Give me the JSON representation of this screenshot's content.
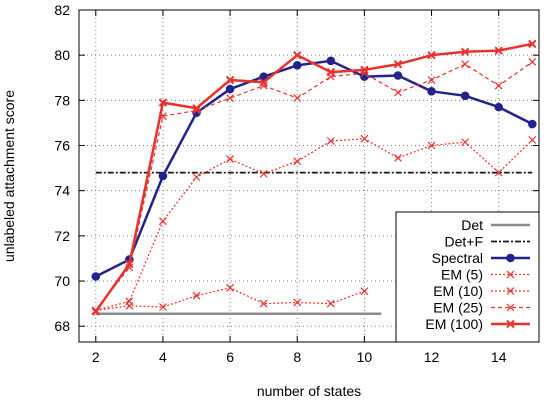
{
  "chart_data": {
    "type": "line",
    "title": "",
    "xlabel": "number of states",
    "ylabel": "unlabeled attachment score",
    "xlim": [
      1.5,
      15.2
    ],
    "ylim": [
      67.3,
      82
    ],
    "xticks": [
      2,
      4,
      6,
      8,
      10,
      12,
      14
    ],
    "yticks": [
      68,
      70,
      72,
      74,
      76,
      78,
      80,
      82
    ],
    "grid": true,
    "legend_position": "bottom-right",
    "series": [
      {
        "name": "Det",
        "style": "solid",
        "marker": "none",
        "color": "#8c8c8c",
        "x": [
          2,
          10.5
        ],
        "y": [
          68.55,
          68.55
        ]
      },
      {
        "name": "Det+F",
        "style": "dashdot",
        "marker": "none",
        "color": "#1a1a1a",
        "x": [
          2,
          15
        ],
        "y": [
          74.8,
          74.8
        ]
      },
      {
        "name": "Spectral",
        "style": "solid",
        "marker": "circle",
        "color": "#23238e",
        "x": [
          2,
          3,
          4,
          5,
          6,
          7,
          8,
          9,
          10,
          11,
          12,
          13,
          14,
          15
        ],
        "y": [
          70.2,
          70.95,
          74.65,
          77.45,
          78.5,
          79.05,
          79.55,
          79.75,
          79.05,
          79.1,
          78.4,
          78.2,
          77.7,
          76.95
        ]
      },
      {
        "name": "EM (5)",
        "style": "dotted",
        "marker": "x",
        "color": "#e8322e",
        "x": [
          2,
          3,
          4,
          5,
          6,
          7,
          8,
          9,
          10
        ],
        "y": [
          68.7,
          68.9,
          68.85,
          69.35,
          69.7,
          69.0,
          69.05,
          69.0,
          69.55
        ]
      },
      {
        "name": "EM (10)",
        "style": "dotted",
        "marker": "x",
        "color": "#e8322e",
        "x": [
          2,
          3,
          4,
          5,
          6,
          7,
          8,
          9,
          10,
          11,
          12,
          13,
          14,
          15
        ],
        "y": [
          68.7,
          69.1,
          72.65,
          74.6,
          75.4,
          74.75,
          75.3,
          76.2,
          76.3,
          75.45,
          76.0,
          76.15,
          74.8,
          76.25
        ]
      },
      {
        "name": "EM (25)",
        "style": "dashed",
        "marker": "x",
        "color": "#e8322e",
        "x": [
          2,
          3,
          4,
          5,
          6,
          7,
          8,
          9,
          10,
          11,
          12,
          13,
          14,
          15
        ],
        "y": [
          68.7,
          70.6,
          77.3,
          77.55,
          78.1,
          78.65,
          78.1,
          79.05,
          79.2,
          78.35,
          78.9,
          79.6,
          78.65,
          79.7
        ]
      },
      {
        "name": "EM (100)",
        "style": "solid",
        "marker": "x",
        "color": "#e8322e",
        "x": [
          2,
          3,
          4,
          5,
          6,
          7,
          8,
          9,
          10,
          11,
          12,
          13,
          14,
          15
        ],
        "y": [
          68.65,
          70.75,
          77.9,
          77.65,
          78.9,
          78.8,
          80.0,
          79.25,
          79.35,
          79.6,
          80.0,
          80.15,
          80.2,
          80.5
        ]
      }
    ]
  }
}
